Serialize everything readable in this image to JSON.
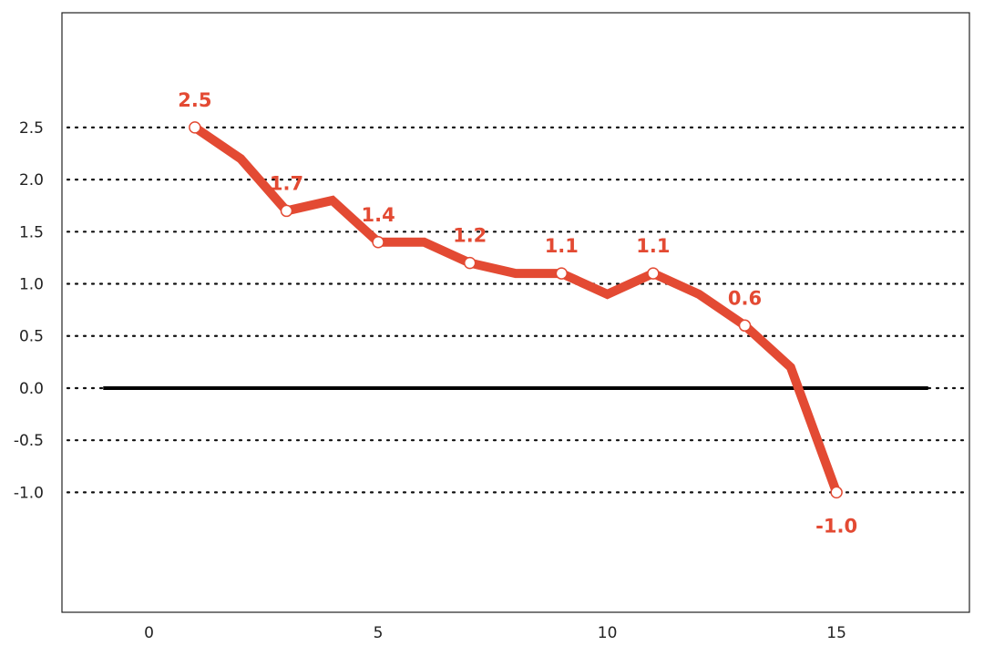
{
  "chart_data": {
    "type": "line",
    "title": "",
    "xlabel": "",
    "ylabel": "",
    "xlim": [
      -1.9,
      17.9
    ],
    "ylim": [
      -2.15,
      3.6
    ],
    "x_ticks": [
      0,
      5,
      10,
      15
    ],
    "y_ticks": [
      -1.0,
      -0.5,
      0.0,
      0.5,
      1.0,
      1.5,
      2.0,
      2.5
    ],
    "grid": "horizontal dotted",
    "zero_line": {
      "y": 0.0,
      "x_from": -1,
      "x_to": 17
    },
    "colors": {
      "series": "#e34a33",
      "zero_line": "#000000",
      "grid": "#111111"
    },
    "series": [
      {
        "x": [
          1,
          2,
          3,
          4,
          5,
          6,
          7,
          8,
          9,
          10,
          11,
          12,
          13,
          14,
          15
        ],
        "values": [
          2.5,
          2.2,
          1.7,
          1.8,
          1.4,
          1.4,
          1.2,
          1.1,
          1.1,
          0.9,
          1.1,
          0.9,
          0.6,
          0.2,
          -1.0
        ]
      }
    ],
    "markers": [
      {
        "x": 1,
        "y": 2.5,
        "label": "2.5"
      },
      {
        "x": 3,
        "y": 1.7,
        "label": "1.7"
      },
      {
        "x": 5,
        "y": 1.4,
        "label": "1.4"
      },
      {
        "x": 7,
        "y": 1.2,
        "label": "1.2"
      },
      {
        "x": 9,
        "y": 1.1,
        "label": "1.1"
      },
      {
        "x": 11,
        "y": 1.1,
        "label": "1.1"
      },
      {
        "x": 13,
        "y": 0.6,
        "label": "0.6"
      },
      {
        "x": 15,
        "y": -1.0,
        "label": "-1.0"
      }
    ]
  }
}
